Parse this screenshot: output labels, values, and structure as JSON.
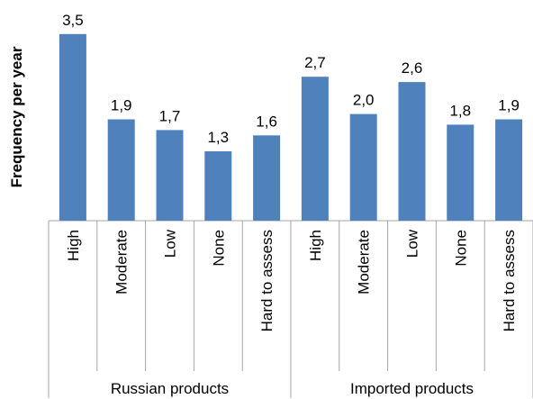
{
  "chart_data": {
    "type": "bar",
    "ylabel": "Frequency per year",
    "ylim": [
      0,
      3.75
    ],
    "grid": false,
    "bar_color": "#4f81bd",
    "groups": [
      {
        "name": "Russian products",
        "categories": [
          "High",
          "Moderate",
          "Low",
          "None",
          "Hard to assess"
        ],
        "values": [
          3.5,
          1.9,
          1.7,
          1.3,
          1.6
        ],
        "labels": [
          "3,5",
          "1,9",
          "1,7",
          "1,3",
          "1,6"
        ]
      },
      {
        "name": "Imported products",
        "categories": [
          "High",
          "Moderate",
          "Low",
          "None",
          "Hard to assess"
        ],
        "values": [
          2.7,
          2.0,
          2.6,
          1.8,
          1.9
        ],
        "labels": [
          "2,7",
          "2,0",
          "2,6",
          "1,8",
          "1,9"
        ]
      }
    ]
  }
}
